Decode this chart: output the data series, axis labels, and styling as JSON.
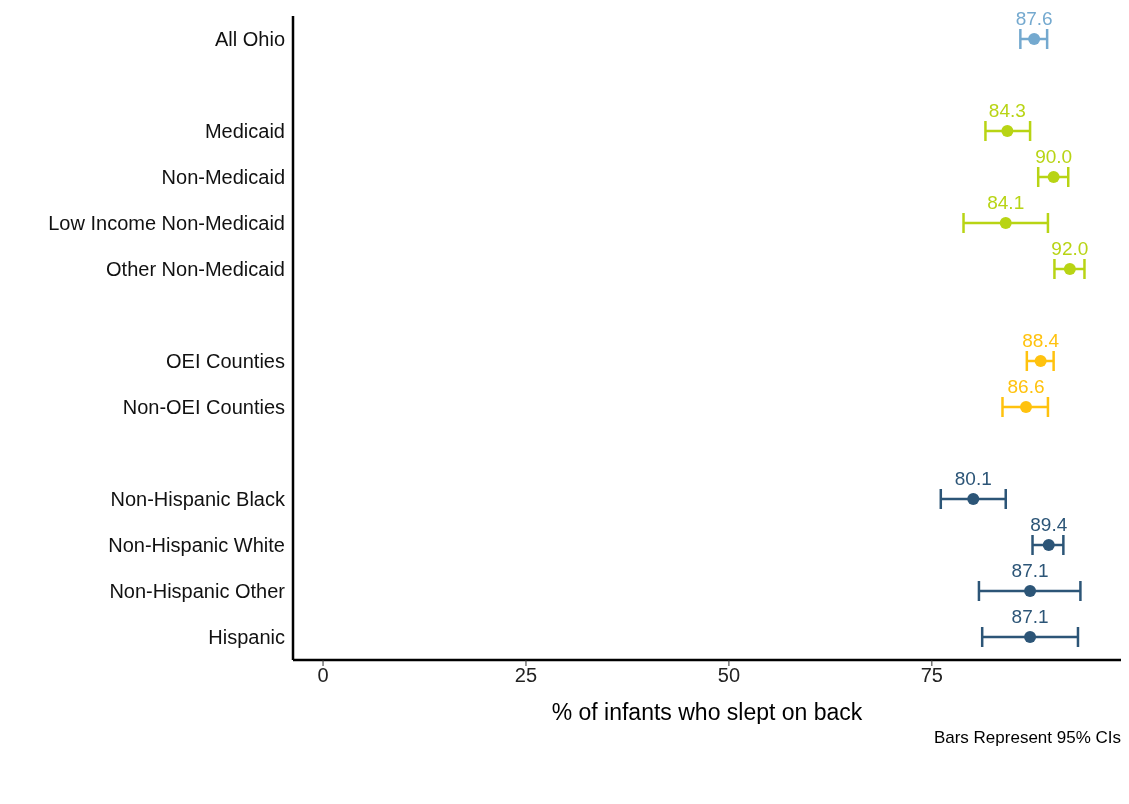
{
  "chart_data": {
    "type": "scatter",
    "orientation": "horizontal",
    "categories": [
      "All Ohio",
      null,
      "Medicaid",
      "Non-Medicaid",
      "Low Income Non-Medicaid",
      "Other Non-Medicaid",
      null,
      "OEI Counties",
      "Non-OEI Counties",
      null,
      "Non-Hispanic Black",
      "Non-Hispanic White",
      "Non-Hispanic Other",
      "Hispanic"
    ],
    "values": [
      87.6,
      null,
      84.3,
      90.0,
      84.1,
      92.0,
      null,
      88.4,
      86.6,
      null,
      80.1,
      89.4,
      87.1,
      87.1
    ],
    "value_labels": [
      "87.6",
      null,
      "84.3",
      "90.0",
      "84.1",
      "92.0",
      null,
      "88.4",
      "86.6",
      null,
      "80.1",
      "89.4",
      "87.1",
      "87.1"
    ],
    "errors": [
      [
        85.9,
        89.2
      ],
      null,
      [
        81.6,
        87.1
      ],
      [
        88.1,
        91.8
      ],
      [
        78.9,
        89.3
      ],
      [
        90.1,
        93.8
      ],
      null,
      [
        86.7,
        90.0
      ],
      [
        83.7,
        89.3
      ],
      null,
      [
        76.1,
        84.1
      ],
      [
        87.4,
        91.2
      ],
      [
        80.8,
        93.3
      ],
      [
        81.2,
        93.0
      ]
    ],
    "colors": [
      "#74a9cf",
      null,
      "#b8d414",
      "#b8d414",
      "#b8d414",
      "#b8d414",
      null,
      "#ffc20e",
      "#ffc20e",
      null,
      "#2c5577",
      "#2c5577",
      "#2c5577",
      "#2c5577"
    ],
    "xlim": [
      -3.7,
      98.3
    ],
    "xticks": [
      0,
      25,
      50,
      75
    ],
    "xlabel": "% of infants who slept on back",
    "annotations": [
      "Bars Represent 95% CIs"
    ]
  }
}
